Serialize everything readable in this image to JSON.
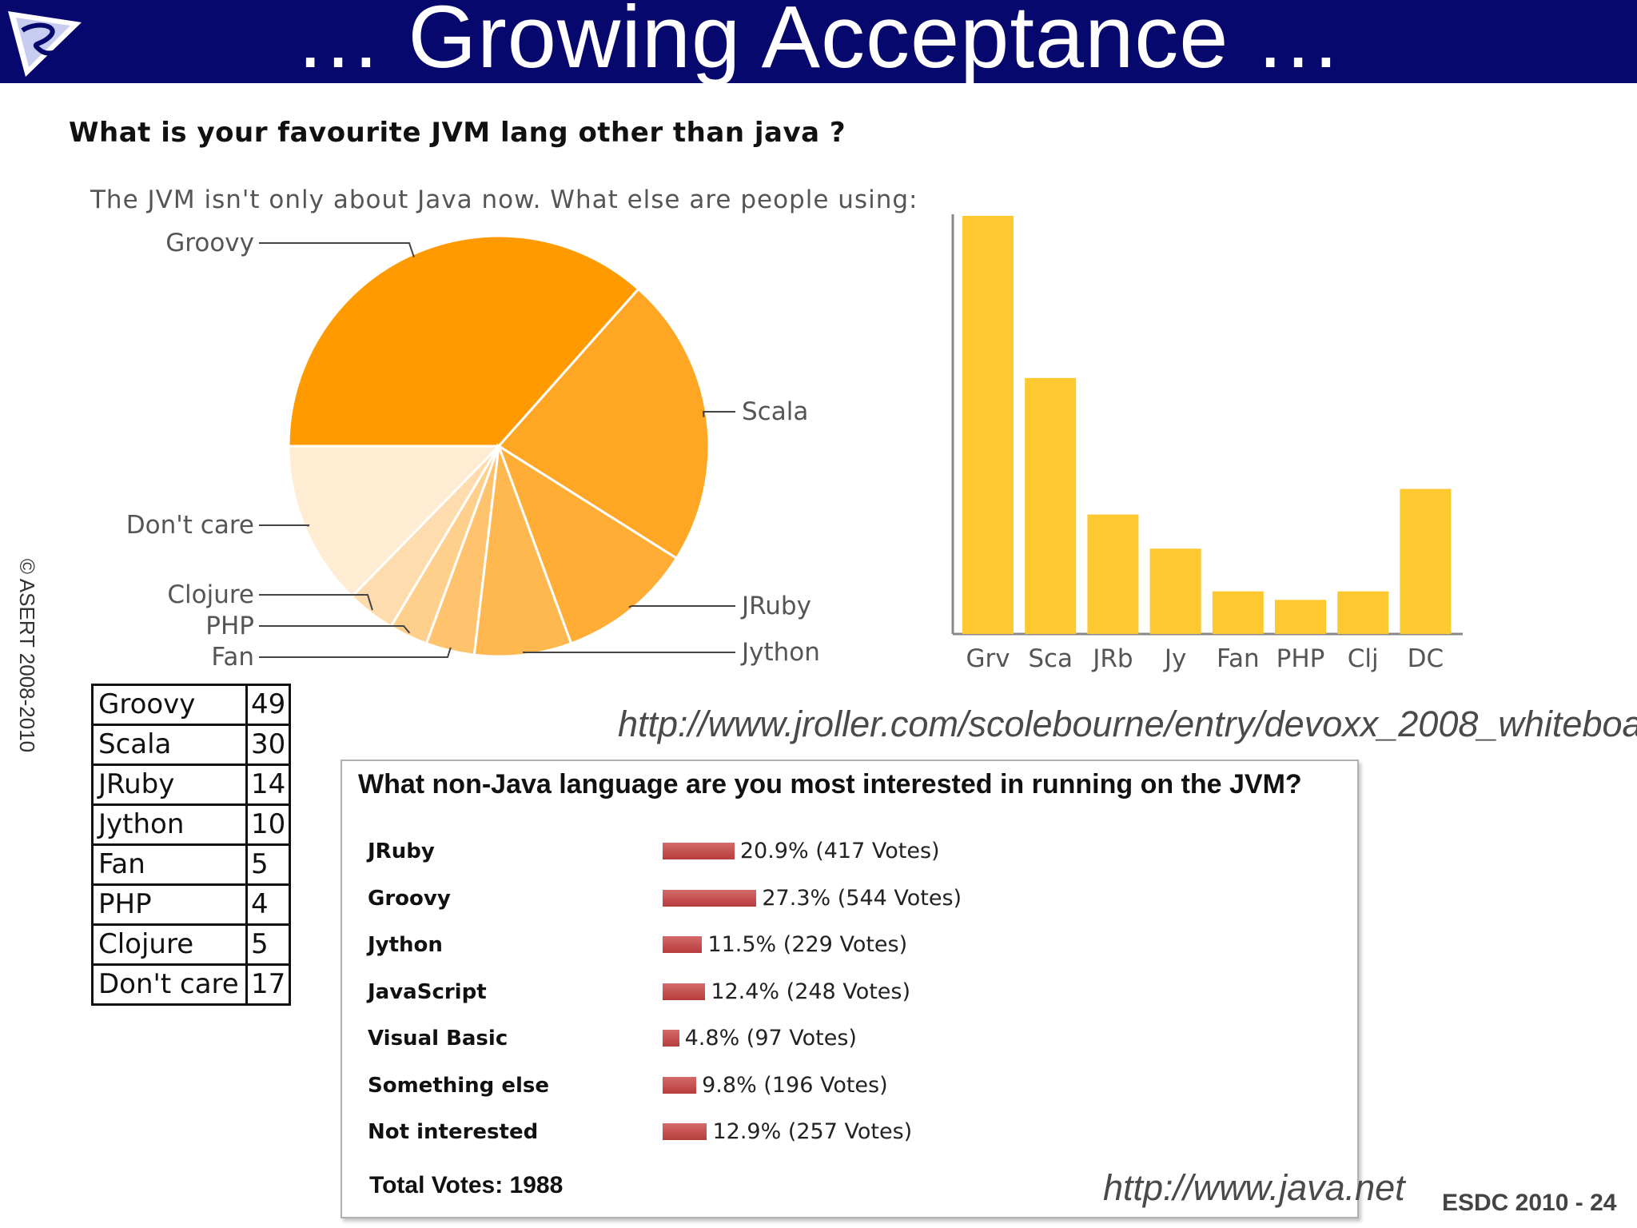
{
  "header": {
    "title": "… Growing Acceptance …",
    "logo_icon": "asert-logo-icon",
    "bg_color": "#07086e"
  },
  "copyright": "© ASERT 2008-2010",
  "survey1": {
    "question": "What is your favourite JVM lang other than java ?",
    "subtitle": "The JVM isn't only about Java now. What else are people using:"
  },
  "chart_data": [
    {
      "type": "pie",
      "title": "",
      "categories": [
        "Groovy",
        "Scala",
        "JRuby",
        "Jython",
        "Fan",
        "PHP",
        "Clojure",
        "Don't care"
      ],
      "values": [
        49,
        30,
        14,
        10,
        5,
        4,
        5,
        17
      ],
      "colors": [
        "#ff9a00",
        "#ffa624",
        "#ffad35",
        "#ffb84f",
        "#ffc36e",
        "#ffcf8c",
        "#ffdcad",
        "#ffecd3"
      ]
    },
    {
      "type": "bar",
      "title": "",
      "categories": [
        "Grv",
        "Sca",
        "JRb",
        "Jy",
        "Fan",
        "PHP",
        "Clj",
        "DC"
      ],
      "values": [
        49,
        30,
        14,
        10,
        5,
        4,
        5,
        17
      ],
      "ylim": [
        0,
        49
      ],
      "color": "#fdc830"
    },
    {
      "type": "bar",
      "orientation": "horizontal",
      "title": "What non-Java language are you most interested in running on the JVM?",
      "categories": [
        "JRuby",
        "Groovy",
        "Jython",
        "JavaScript",
        "Visual Basic",
        "Something else",
        "Not interested"
      ],
      "values": [
        20.9,
        27.3,
        11.5,
        12.4,
        4.8,
        9.8,
        12.9
      ],
      "votes": [
        417,
        544,
        229,
        248,
        97,
        196,
        257
      ],
      "value_labels": [
        "20.9% (417 Votes)",
        "27.3% (544 Votes)",
        "11.5% (229 Votes)",
        "12.4% (248 Votes)",
        "4.8% (97 Votes)",
        "9.8% (196 Votes)",
        "12.9% (257 Votes)"
      ],
      "total_label": "Total Votes: 1988",
      "color": "#c04848"
    }
  ],
  "table1": {
    "rows": [
      {
        "lang": "Groovy",
        "count": "49"
      },
      {
        "lang": "Scala",
        "count": "30"
      },
      {
        "lang": "JRuby",
        "count": "14"
      },
      {
        "lang": "Jython",
        "count": "10"
      },
      {
        "lang": "Fan",
        "count": "5"
      },
      {
        "lang": "PHP",
        "count": "4"
      },
      {
        "lang": "Clojure",
        "count": "5"
      },
      {
        "lang": "Don't care",
        "count": "17"
      }
    ]
  },
  "links": {
    "url1": "http://www.jroller.com/scolebourne/entry/devoxx_2008_whiteboard_votes",
    "url2": "http://www.java.net"
  },
  "footer": "ESDC 2010 - 24"
}
